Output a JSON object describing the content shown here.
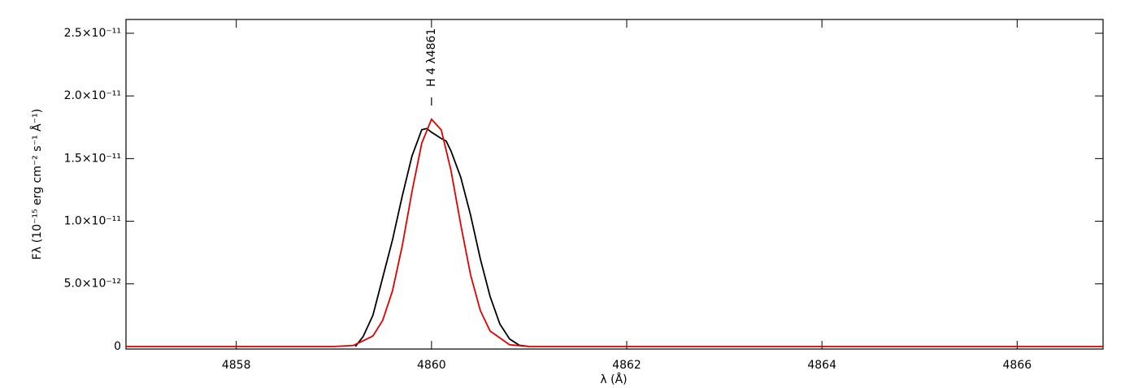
{
  "chart_data": {
    "type": "line",
    "xlabel": "λ (Å)",
    "ylabel": "Fλ (10⁻¹⁵ erg cm⁻² s⁻¹ Å⁻¹)",
    "xlim": [
      4856.87,
      4866.88
    ],
    "ylim": [
      -2e-13,
      2.61e-11
    ],
    "xticks": [
      4858,
      4860,
      4862,
      4864,
      4866
    ],
    "yticks": [
      0,
      {
        "value": 5e-12,
        "label": "5.0×10⁻¹²"
      },
      {
        "value": 1e-11,
        "label": "1.0×10⁻¹¹"
      },
      {
        "value": 1.5e-11,
        "label": "1.5×10⁻¹¹"
      },
      {
        "value": 2e-11,
        "label": "2.0×10⁻¹¹"
      },
      {
        "value": 2.5e-11,
        "label": "2.5×10⁻¹¹"
      }
    ],
    "annotations": [
      {
        "text": "H 4 λ4861",
        "x": 4860.0
      }
    ],
    "series": [
      {
        "color": "#000000",
        "x": [
          4859.22,
          4859.3,
          4859.4,
          4859.5,
          4859.6,
          4859.7,
          4859.8,
          4859.9,
          4859.95,
          4860.0,
          4860.1,
          4860.15,
          4860.2,
          4860.3,
          4860.4,
          4860.5,
          4860.6,
          4860.7,
          4860.8,
          4860.9,
          4861.0
        ],
        "values": [
          0,
          8e-13,
          2.5e-12,
          5.5e-12,
          8.5e-12,
          1.2e-11,
          1.52e-11,
          1.73e-11,
          1.74e-11,
          1.71e-11,
          1.66e-11,
          1.64e-11,
          1.56e-11,
          1.35e-11,
          1.05e-11,
          7e-12,
          4e-12,
          1.8e-12,
          6e-13,
          1e-13,
          0
        ]
      },
      {
        "color": "#e00000",
        "x": [
          4856.87,
          4858.5,
          4859.0,
          4859.2,
          4859.4,
          4859.5,
          4859.6,
          4859.7,
          4859.8,
          4859.9,
          4860.0,
          4860.1,
          4860.2,
          4860.3,
          4860.4,
          4860.5,
          4860.6,
          4860.8,
          4861.0,
          4861.5,
          4866.88
        ],
        "values": [
          0,
          0,
          4e-15,
          8.4e-14,
          8.4e-13,
          2.09e-12,
          4.44e-12,
          8.02e-12,
          1.236e-11,
          1.622e-11,
          1.814e-11,
          1.729e-11,
          1.404e-11,
          9.72e-12,
          5.73e-12,
          2.88e-12,
          1.24e-12,
          1.4e-13,
          0,
          0,
          0
        ]
      }
    ]
  }
}
